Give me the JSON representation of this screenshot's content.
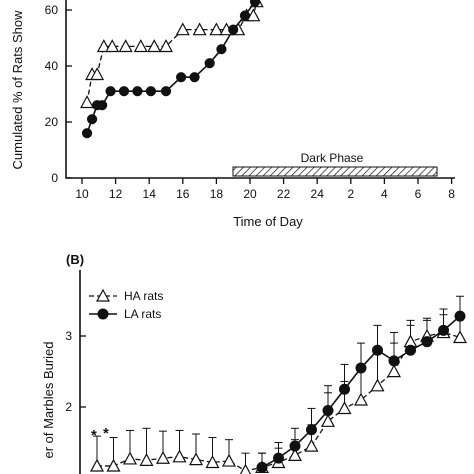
{
  "chart_data": [
    {
      "panel": "A",
      "type": "line",
      "xlabel": "Time of Day",
      "ylabel": "Cumulated % of Rats Show",
      "x_ticks": [
        "10",
        "12",
        "14",
        "16",
        "18",
        "20",
        "22",
        "24",
        "2",
        "4",
        "6",
        "8"
      ],
      "y_ticks": [
        "0",
        "20",
        "40",
        "60"
      ],
      "ylim": [
        0,
        65
      ],
      "annotation": "Dark Phase",
      "series": [
        {
          "marker": "open-triangle",
          "line": "dashed",
          "x": [
            10.3,
            10.6,
            10.9,
            11.3,
            11.8,
            12.6,
            13.5,
            14.3,
            15.0,
            16.0,
            17.0,
            18.0,
            18.6,
            19.3,
            19.8,
            20.2,
            20.4
          ],
          "values": [
            27,
            37,
            37,
            47,
            47,
            47,
            47,
            47,
            47,
            53,
            53,
            53,
            53,
            53,
            58,
            58,
            63
          ]
        },
        {
          "marker": "filled-circle",
          "line": "solid",
          "x": [
            10.3,
            10.6,
            10.9,
            11.2,
            11.7,
            12.5,
            13.3,
            14.1,
            15.0,
            15.9,
            16.7,
            17.6,
            18.3,
            19.0,
            19.7,
            20.3,
            20.9
          ],
          "values": [
            16,
            21,
            26,
            26,
            31,
            31,
            31,
            31,
            31,
            36,
            36,
            41,
            46,
            53,
            58,
            63,
            66
          ]
        }
      ]
    },
    {
      "panel": "B",
      "type": "line",
      "ylabel": "er of Marbles Buried",
      "y_ticks": [
        "2",
        "3"
      ],
      "ylim": [
        1.0,
        3.5
      ],
      "legend_position": "top-left",
      "asterisks": [
        "*",
        "*"
      ],
      "series": [
        {
          "name": "HA rats",
          "marker": "open-triangle",
          "line": "dashed",
          "points": [
            {
              "x": 1,
              "y": 1.17,
              "err": 0.42
            },
            {
              "x": 2,
              "y": 1.17,
              "err": 0.4
            },
            {
              "x": 3,
              "y": 1.27,
              "err": 0.4
            },
            {
              "x": 4,
              "y": 1.25,
              "err": 0.45
            },
            {
              "x": 5,
              "y": 1.28,
              "err": 0.38
            },
            {
              "x": 6,
              "y": 1.3,
              "err": 0.37
            },
            {
              "x": 7,
              "y": 1.26,
              "err": 0.36
            },
            {
              "x": 8,
              "y": 1.22,
              "err": 0.35
            },
            {
              "x": 9,
              "y": 1.24,
              "err": 0.3
            },
            {
              "x": 10,
              "y": 1.1,
              "err": 0.25
            },
            {
              "x": 11,
              "y": 1.15,
              "err": 0.2
            },
            {
              "x": 12,
              "y": 1.22,
              "err": 0.2
            },
            {
              "x": 13,
              "y": 1.32,
              "err": 0.22
            },
            {
              "x": 14,
              "y": 1.45,
              "err": 0.3
            },
            {
              "x": 15,
              "y": 1.8,
              "err": 0.4
            },
            {
              "x": 16,
              "y": 1.98,
              "err": 0.38
            },
            {
              "x": 17,
              "y": 2.1,
              "err": 0.4
            },
            {
              "x": 18,
              "y": 2.3,
              "err": 0.45
            },
            {
              "x": 19,
              "y": 2.5,
              "err": 0.4
            },
            {
              "x": 20,
              "y": 2.92,
              "err": 0.3
            },
            {
              "x": 21,
              "y": 3.0,
              "err": 0.25
            },
            {
              "x": 22,
              "y": 3.05,
              "err": 0.25
            },
            {
              "x": 23,
              "y": 2.98,
              "err": 0.25
            }
          ]
        },
        {
          "name": "LA rats",
          "marker": "filled-circle",
          "line": "solid",
          "points": [
            {
              "x": 11,
              "y": 1.15,
              "err": 0.2
            },
            {
              "x": 12,
              "y": 1.28,
              "err": 0.22
            },
            {
              "x": 13,
              "y": 1.45,
              "err": 0.25
            },
            {
              "x": 14,
              "y": 1.68,
              "err": 0.3
            },
            {
              "x": 15,
              "y": 1.95,
              "err": 0.35
            },
            {
              "x": 16,
              "y": 2.25,
              "err": 0.35
            },
            {
              "x": 17,
              "y": 2.55,
              "err": 0.35
            },
            {
              "x": 18,
              "y": 2.8,
              "err": 0.35
            },
            {
              "x": 19,
              "y": 2.65,
              "err": 0.4
            },
            {
              "x": 20,
              "y": 2.8,
              "err": 0.35
            },
            {
              "x": 21,
              "y": 2.92,
              "err": 0.3
            },
            {
              "x": 22,
              "y": 3.08,
              "err": 0.3
            },
            {
              "x": 23,
              "y": 3.28,
              "err": 0.28
            }
          ]
        }
      ]
    }
  ],
  "panel_b_label": "(B)"
}
